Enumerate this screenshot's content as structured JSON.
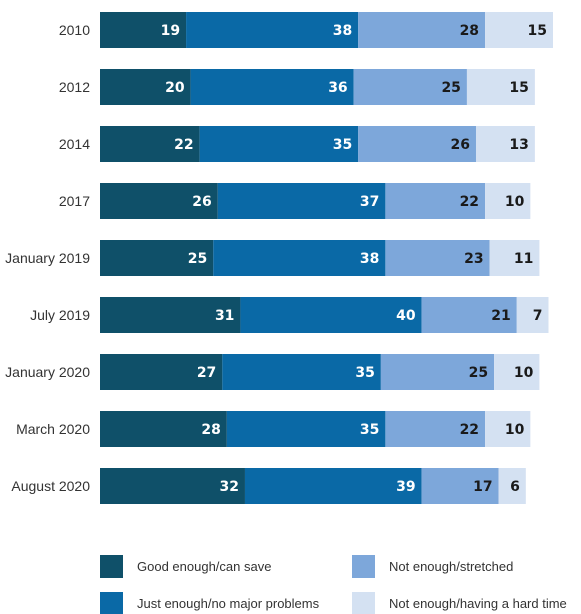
{
  "chart_data": {
    "type": "bar",
    "orientation": "horizontal",
    "stacked": true,
    "xlim": [
      0,
      100
    ],
    "grid": false,
    "legend_placement": "bottom",
    "categories": [
      "2010",
      "2012",
      "2014",
      "2017",
      "January 2019",
      "July 2019",
      "January 2020",
      "March 2020",
      "August 2020"
    ],
    "series": [
      {
        "name": "Good enough/can save",
        "color": "#0f5069",
        "label_color": "#ffffff",
        "values": [
          19,
          20,
          22,
          26,
          25,
          31,
          27,
          28,
          32
        ]
      },
      {
        "name": "Just enough/no major problems",
        "color": "#0a69a6",
        "label_color": "#ffffff",
        "values": [
          38,
          36,
          35,
          37,
          38,
          40,
          35,
          35,
          39
        ]
      },
      {
        "name": "Not enough/stretched",
        "color": "#7da7da",
        "label_color": "#1a1a1a",
        "values": [
          28,
          25,
          26,
          22,
          23,
          21,
          25,
          22,
          17
        ]
      },
      {
        "name": "Not enough/having a hard time",
        "color": "#d4e1f2",
        "label_color": "#1a1a1a",
        "values": [
          15,
          15,
          13,
          10,
          11,
          7,
          10,
          10,
          6
        ]
      }
    ]
  }
}
